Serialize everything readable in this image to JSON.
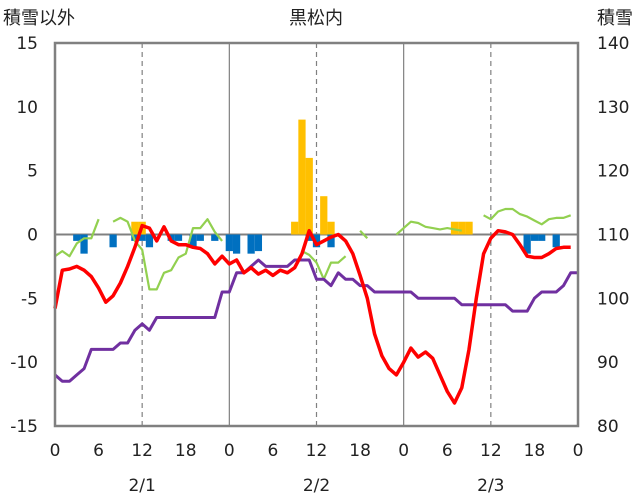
{
  "chart_data": {
    "type": "bar+line",
    "title": "黒松内",
    "left_axis_label": "積雪以外",
    "right_axis_label": "積雪",
    "left_ylim": [
      -15,
      15
    ],
    "left_ticks": [
      "15",
      "10",
      "5",
      "0",
      "-5",
      "-10",
      "-15"
    ],
    "right_ylim": [
      80,
      140
    ],
    "right_ticks": [
      "140",
      "130",
      "120",
      "110",
      "100",
      "90",
      "80"
    ],
    "x_ticks": [
      "0",
      "6",
      "12",
      "18",
      "0",
      "6",
      "12",
      "18",
      "0",
      "6",
      "12",
      "18",
      "0"
    ],
    "date_labels": [
      "2/1",
      "2/2",
      "2/3"
    ],
    "grid": "dashed vertical at 12h and solid at day boundaries",
    "colors": {
      "temperature": "#ff0000",
      "snow_depth": "#7030a0",
      "snowfall_bars": "#ffc000",
      "depth_change_bars": "#0070c0",
      "green_line": "#92d050",
      "frame": "#808080"
    },
    "temperature": [
      [
        0,
        -5.8
      ],
      [
        1,
        -2.8
      ],
      [
        2,
        -2.7
      ],
      [
        3,
        -2.5
      ],
      [
        4,
        -2.8
      ],
      [
        5,
        -3.3
      ],
      [
        6,
        -4.2
      ],
      [
        7,
        -5.3
      ],
      [
        8,
        -4.8
      ],
      [
        9,
        -3.8
      ],
      [
        10,
        -2.5
      ],
      [
        11,
        -1.0
      ],
      [
        12,
        0.7
      ],
      [
        13,
        0.5
      ],
      [
        14,
        -0.5
      ],
      [
        15,
        0.6
      ],
      [
        16,
        -0.5
      ],
      [
        17,
        -0.8
      ],
      [
        18,
        -0.8
      ],
      [
        19,
        -1.0
      ],
      [
        20,
        -1.1
      ],
      [
        21,
        -1.5
      ],
      [
        22,
        -2.3
      ],
      [
        23,
        -1.7
      ],
      [
        24,
        -2.3
      ],
      [
        25,
        -2.0
      ],
      [
        26,
        -3.0
      ],
      [
        27,
        -2.6
      ],
      [
        28,
        -3.1
      ],
      [
        29,
        -2.8
      ],
      [
        30,
        -3.2
      ],
      [
        31,
        -2.8
      ],
      [
        32,
        -3.0
      ],
      [
        33,
        -2.6
      ],
      [
        34,
        -1.5
      ],
      [
        35,
        0.3
      ],
      [
        36,
        -0.8
      ],
      [
        37,
        -0.5
      ],
      [
        38,
        -0.2
      ],
      [
        39,
        0.0
      ],
      [
        40,
        -0.5
      ],
      [
        41,
        -1.5
      ],
      [
        42,
        -3.2
      ],
      [
        43,
        -5.0
      ],
      [
        44,
        -7.8
      ],
      [
        45,
        -9.5
      ],
      [
        46,
        -10.5
      ],
      [
        47,
        -11.0
      ],
      [
        48,
        -10.0
      ],
      [
        49,
        -8.9
      ],
      [
        50,
        -9.6
      ],
      [
        51,
        -9.2
      ],
      [
        52,
        -9.7
      ],
      [
        53,
        -11.0
      ],
      [
        54,
        -12.3
      ],
      [
        55,
        -13.2
      ],
      [
        56,
        -12.0
      ],
      [
        57,
        -9.0
      ],
      [
        58,
        -5.0
      ],
      [
        59,
        -1.5
      ],
      [
        60,
        -0.3
      ],
      [
        61,
        0.3
      ],
      [
        62,
        0.2
      ],
      [
        63,
        0.0
      ],
      [
        64,
        -0.8
      ],
      [
        65,
        -1.7
      ],
      [
        66,
        -1.8
      ],
      [
        67,
        -1.8
      ],
      [
        68,
        -1.5
      ],
      [
        69,
        -1.1
      ],
      [
        70,
        -1.0
      ],
      [
        71,
        -1.0
      ]
    ],
    "snow_depth": [
      [
        0,
        88
      ],
      [
        1,
        87
      ],
      [
        2,
        87
      ],
      [
        3,
        88
      ],
      [
        4,
        89
      ],
      [
        5,
        92
      ],
      [
        6,
        92
      ],
      [
        7,
        92
      ],
      [
        8,
        92
      ],
      [
        9,
        93
      ],
      [
        10,
        93
      ],
      [
        11,
        95
      ],
      [
        12,
        96
      ],
      [
        13,
        95
      ],
      [
        14,
        97
      ],
      [
        15,
        97
      ],
      [
        16,
        97
      ],
      [
        17,
        97
      ],
      [
        18,
        97
      ],
      [
        19,
        97
      ],
      [
        20,
        97
      ],
      [
        21,
        97
      ],
      [
        22,
        97
      ],
      [
        23,
        101
      ],
      [
        24,
        101
      ],
      [
        25,
        104
      ],
      [
        26,
        104
      ],
      [
        27,
        105
      ],
      [
        28,
        106
      ],
      [
        29,
        105
      ],
      [
        30,
        105
      ],
      [
        31,
        105
      ],
      [
        32,
        105
      ],
      [
        33,
        106
      ],
      [
        34,
        106
      ],
      [
        35,
        106
      ],
      [
        36,
        103
      ],
      [
        37,
        103
      ],
      [
        38,
        102
      ],
      [
        39,
        104
      ],
      [
        40,
        103
      ],
      [
        41,
        103
      ],
      [
        42,
        102
      ],
      [
        43,
        102
      ],
      [
        44,
        101
      ],
      [
        45,
        101
      ],
      [
        46,
        101
      ],
      [
        47,
        101
      ],
      [
        48,
        101
      ],
      [
        49,
        101
      ],
      [
        50,
        100
      ],
      [
        51,
        100
      ],
      [
        52,
        100
      ],
      [
        53,
        100
      ],
      [
        54,
        100
      ],
      [
        55,
        100
      ],
      [
        56,
        99
      ],
      [
        57,
        99
      ],
      [
        58,
        99
      ],
      [
        59,
        99
      ],
      [
        60,
        99
      ],
      [
        61,
        99
      ],
      [
        62,
        99
      ],
      [
        63,
        98
      ],
      [
        64,
        98
      ],
      [
        65,
        98
      ],
      [
        66,
        100
      ],
      [
        67,
        101
      ],
      [
        68,
        101
      ],
      [
        69,
        101
      ],
      [
        70,
        102
      ],
      [
        71,
        104
      ],
      [
        72,
        104
      ]
    ],
    "green_line": [
      [
        [
          0,
          -1.7
        ],
        [
          1,
          -1.3
        ],
        [
          2,
          -1.7
        ],
        [
          3,
          -0.7
        ],
        [
          4,
          -0.3
        ],
        [
          5,
          -0.3
        ],
        [
          6,
          1.2
        ]
      ],
      [
        [
          8,
          1.0
        ],
        [
          9,
          1.3
        ],
        [
          10,
          1.0
        ],
        [
          11,
          -0.5
        ],
        [
          12,
          -1.2
        ],
        [
          13,
          -4.3
        ],
        [
          14,
          -4.3
        ],
        [
          15,
          -3.0
        ],
        [
          16,
          -2.8
        ],
        [
          17,
          -1.8
        ],
        [
          18,
          -1.5
        ],
        [
          19,
          0.5
        ],
        [
          20,
          0.5
        ],
        [
          21,
          1.2
        ],
        [
          22,
          0.2
        ],
        [
          23,
          -0.5
        ]
      ],
      [
        [
          34,
          -1.3
        ],
        [
          35,
          -1.6
        ],
        [
          36,
          -2.2
        ],
        [
          37,
          -3.5
        ],
        [
          38,
          -2.2
        ],
        [
          39,
          -2.2
        ],
        [
          40,
          -1.7
        ]
      ],
      [
        [
          42,
          0.3
        ],
        [
          43,
          -0.3
        ]
      ],
      [
        [
          47,
          0.0
        ],
        [
          48,
          0.5
        ],
        [
          49,
          1.0
        ],
        [
          50,
          0.9
        ],
        [
          51,
          0.6
        ],
        [
          52,
          0.5
        ],
        [
          53,
          0.4
        ],
        [
          54,
          0.5
        ],
        [
          55,
          0.4
        ],
        [
          56,
          0.3
        ]
      ],
      [
        [
          59,
          1.5
        ],
        [
          60,
          1.2
        ],
        [
          61,
          1.8
        ],
        [
          62,
          2.0
        ],
        [
          63,
          2.0
        ],
        [
          64,
          1.6
        ],
        [
          65,
          1.4
        ],
        [
          66,
          1.1
        ],
        [
          67,
          0.8
        ],
        [
          68,
          1.2
        ],
        [
          69,
          1.3
        ],
        [
          70,
          1.3
        ],
        [
          71,
          1.5
        ]
      ]
    ],
    "snowfall_bars": [
      [
        11,
        1
      ],
      [
        12,
        1
      ],
      [
        33,
        1
      ],
      [
        34,
        9
      ],
      [
        35,
        6
      ],
      [
        37,
        3
      ],
      [
        38,
        1
      ],
      [
        55,
        1
      ],
      [
        56,
        1
      ],
      [
        57,
        1
      ]
    ],
    "depth_change_bars": [
      [
        3,
        -0.5
      ],
      [
        4,
        -1.5
      ],
      [
        8,
        -1.0
      ],
      [
        11,
        -0.5
      ],
      [
        12,
        -0.5
      ],
      [
        13,
        -1.0
      ],
      [
        16,
        -0.5
      ],
      [
        17,
        -0.5
      ],
      [
        19,
        -1.0
      ],
      [
        20,
        -0.5
      ],
      [
        22,
        -0.5
      ],
      [
        24,
        -1.3
      ],
      [
        25,
        -1.5
      ],
      [
        27,
        -1.5
      ],
      [
        28,
        -1.3
      ],
      [
        35,
        -0.5
      ],
      [
        36,
        -1.0
      ],
      [
        38,
        -1.0
      ],
      [
        65,
        -1.5
      ],
      [
        66,
        -0.5
      ],
      [
        67,
        -0.5
      ],
      [
        69,
        -1.0
      ]
    ]
  }
}
